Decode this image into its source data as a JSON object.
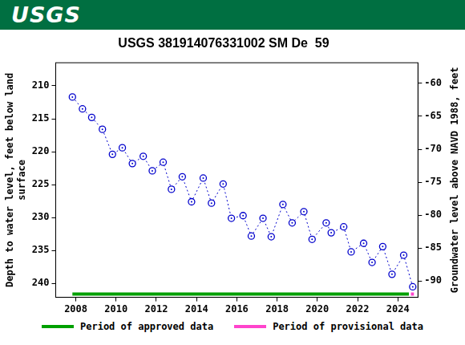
{
  "header": "USGS",
  "chart_data": {
    "type": "line",
    "title": "USGS 381914076331002 SM De  59",
    "y_label": [
      "Depth to water level, feet below land",
      "surface"
    ],
    "y2_label": "Groundwater level above NAVD 1988, feet",
    "x": [
      2007.83,
      2008.33,
      2008.79,
      2009.32,
      2009.82,
      2010.31,
      2010.81,
      2011.35,
      2011.8,
      2012.34,
      2012.75,
      2013.29,
      2013.75,
      2014.33,
      2014.74,
      2015.32,
      2015.73,
      2016.31,
      2016.72,
      2017.3,
      2017.71,
      2018.29,
      2018.75,
      2019.33,
      2019.74,
      2020.44,
      2020.69,
      2021.31,
      2021.68,
      2022.3,
      2022.72,
      2023.25,
      2023.71,
      2024.29,
      2024.74
    ],
    "values": [
      211.7,
      213.5,
      214.8,
      216.6,
      220.4,
      219.4,
      221.8,
      220.7,
      222.9,
      221.6,
      225.7,
      223.8,
      227.6,
      224.0,
      227.8,
      224.9,
      230.1,
      229.7,
      232.8,
      230.1,
      232.9,
      228.0,
      230.8,
      229.1,
      233.3,
      230.8,
      232.3,
      231.4,
      235.2,
      233.9,
      236.8,
      234.4,
      238.6,
      235.7,
      240.5
    ],
    "color": "#0000cc",
    "marker": "circle",
    "line_style": "dotted",
    "xlim": [
      2007.0,
      2025.0
    ],
    "xticks": [
      2008,
      2010,
      2012,
      2014,
      2016,
      2018,
      2020,
      2022,
      2024
    ],
    "ylim": [
      242.1,
      206.5
    ],
    "yticks": [
      210,
      215,
      220,
      225,
      230,
      235,
      240
    ],
    "y2lim": [
      -92.47,
      -56.87
    ],
    "y2ticks": [
      -90,
      -85,
      -80,
      -75,
      -70,
      -65,
      -60
    ],
    "grid": false,
    "legend": "bottom",
    "periods": [
      {
        "name": "Period of approved data",
        "color": "#00a000",
        "start": 2007.83,
        "end": 2024.55
      },
      {
        "name": "Period of provisional data",
        "color": "#ff44cc",
        "start": 2024.65,
        "end": 2024.8
      }
    ]
  }
}
